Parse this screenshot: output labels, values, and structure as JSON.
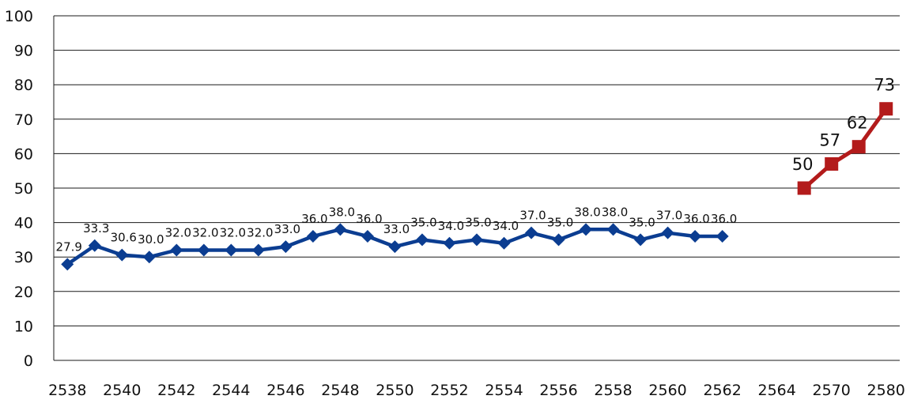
{
  "chart_data": {
    "type": "line",
    "title": "",
    "xlabel": "",
    "ylabel": "",
    "ylim": [
      0,
      100
    ],
    "yticks": [
      "0",
      "10",
      "20",
      "30",
      "40",
      "50",
      "60",
      "70",
      "80",
      "90",
      "100"
    ],
    "categories": [
      "2538",
      "2539",
      "2540",
      "2541",
      "2542",
      "2543",
      "2544",
      "2545",
      "2546",
      "2547",
      "2548",
      "2549",
      "2550",
      "2551",
      "2552",
      "2553",
      "2554",
      "2555",
      "2556",
      "2557",
      "2558",
      "2559",
      "2560",
      "2561",
      "2562",
      "2563",
      "2564",
      "2565",
      "2570",
      "2575",
      "2580"
    ],
    "xtick_labels": [
      "2538",
      "2540",
      "2542",
      "2544",
      "2546",
      "2548",
      "2550",
      "2552",
      "2554",
      "2556",
      "2558",
      "2560",
      "2562",
      "2564",
      "2570",
      "2580"
    ],
    "grid": true,
    "legend": false,
    "series": [
      {
        "color": "#0b3d91",
        "marker": "diamond",
        "x": [
          "2538",
          "2539",
          "2540",
          "2541",
          "2542",
          "2543",
          "2544",
          "2545",
          "2546",
          "2547",
          "2548",
          "2549",
          "2550",
          "2551",
          "2552",
          "2553",
          "2554",
          "2555",
          "2556",
          "2557",
          "2558",
          "2559",
          "2560",
          "2561",
          "2562"
        ],
        "values": [
          27.9,
          33.3,
          30.6,
          30.0,
          32.0,
          32.0,
          32.0,
          32.0,
          33.0,
          36.0,
          38.0,
          36.0,
          33.0,
          35.0,
          34.0,
          35.0,
          34.0,
          37.0,
          35.0,
          38.0,
          38.0,
          35.0,
          37.0,
          36.0,
          36.0
        ],
        "labels": [
          "27.9",
          "33.3",
          "30.6",
          "30.0",
          "32.0",
          "32.0",
          "32.0",
          "32.0",
          "33.0",
          "36.0",
          "38.0",
          "36.0",
          "33.0",
          "35.0",
          "34.0",
          "35.0",
          "34.0",
          "37.0",
          "35.0",
          "38.0",
          "38.0",
          "35.0",
          "37.0",
          "36.0",
          "36.0"
        ]
      },
      {
        "color": "#b31b1b",
        "marker": "square",
        "x": [
          "2565",
          "2570",
          "2575",
          "2580"
        ],
        "values": [
          50,
          57,
          62,
          73
        ],
        "labels": [
          "50",
          "57",
          "62",
          "73"
        ]
      }
    ]
  }
}
